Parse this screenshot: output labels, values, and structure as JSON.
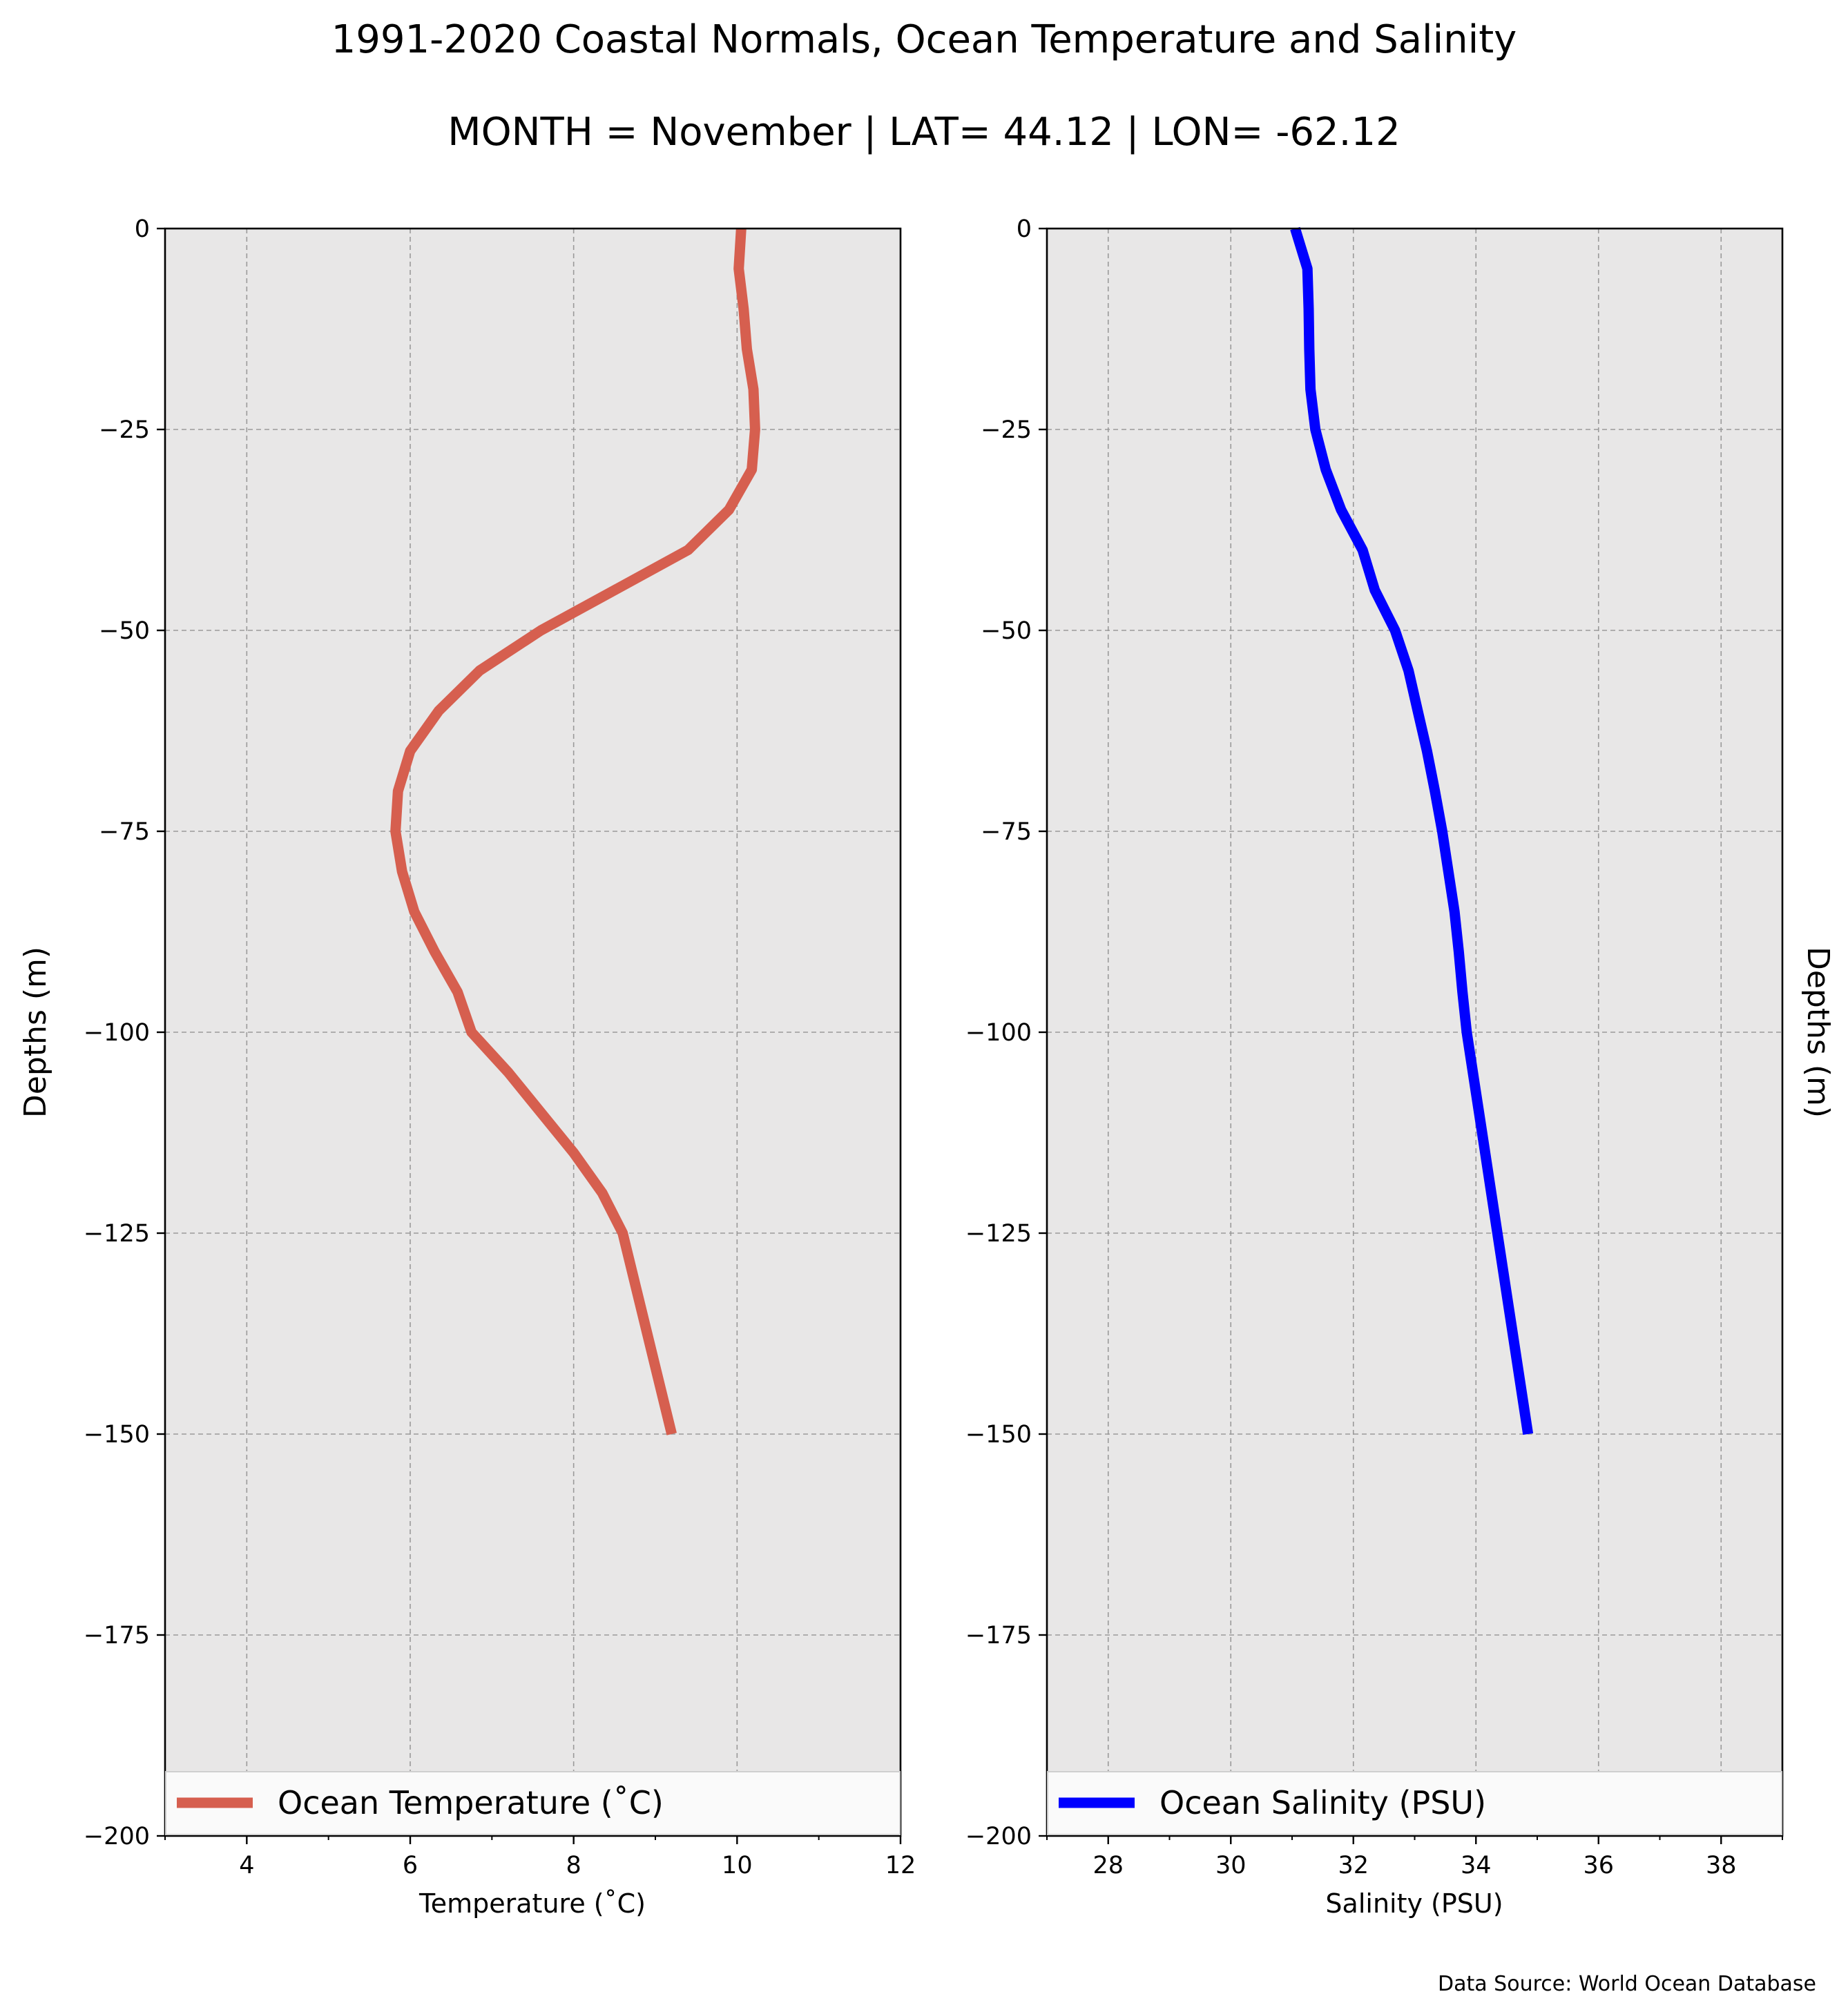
{
  "figure": {
    "title": "1991-2020 Coastal Normals, Ocean Temperature and Salinity",
    "subtitle": "MONTH = November | LAT= 44.12 | LON= -62.12",
    "source_note": "Data Source: World Ocean Database",
    "background_color": "#e8e7e7"
  },
  "chart_data": [
    {
      "type": "line",
      "panel": "temperature",
      "xlabel": "Temperature ($^\\circ$C)",
      "xlabel_text": "Temperature (˚C)",
      "ylabel": "Depths (m)",
      "xlim": [
        3,
        12
      ],
      "ylim": [
        -200,
        0
      ],
      "xticks": [
        "4",
        "6",
        "8",
        "10",
        "12"
      ],
      "xtick_values": [
        4,
        6,
        8,
        10,
        12
      ],
      "yticks": [
        "0",
        "−25",
        "−50",
        "−75",
        "−100",
        "−125",
        "−150",
        "−175",
        "−200"
      ],
      "ytick_values": [
        0,
        -25,
        -50,
        -75,
        -100,
        -125,
        -150,
        -175,
        -200
      ],
      "grid": true,
      "legend_position": "bottom",
      "series": [
        {
          "name": "Ocean Temperature (˚C)",
          "color": "#d65f4f",
          "x": [
            10.05,
            10.02,
            10.08,
            10.12,
            10.2,
            10.22,
            10.18,
            9.9,
            9.4,
            8.5,
            7.6,
            6.85,
            6.35,
            6.0,
            5.85,
            5.82,
            5.9,
            6.05,
            6.3,
            6.58,
            6.75,
            7.2,
            7.6,
            8.0,
            8.35,
            8.6,
            9.2
          ],
          "y": [
            0,
            -5,
            -10,
            -15,
            -20,
            -25,
            -30,
            -35,
            -40,
            -45,
            -50,
            -55,
            -60,
            -65,
            -70,
            -75,
            -80,
            -85,
            -90,
            -95,
            -100,
            -105,
            -110,
            -115,
            -120,
            -125,
            -150
          ]
        }
      ]
    },
    {
      "type": "line",
      "panel": "salinity",
      "xlabel": "Salinity (PSU)",
      "ylabel": "Depths (m)",
      "xlim": [
        27,
        39
      ],
      "ylim": [
        -200,
        0
      ],
      "xticks": [
        "28",
        "30",
        "32",
        "34",
        "36",
        "38"
      ],
      "xtick_values": [
        28,
        30,
        32,
        34,
        36,
        38
      ],
      "yticks": [
        "0",
        "−25",
        "−50",
        "−75",
        "−100",
        "−125",
        "−150",
        "−175",
        "−200"
      ],
      "ytick_values": [
        0,
        -25,
        -50,
        -75,
        -100,
        -125,
        -150,
        -175,
        -200
      ],
      "grid": true,
      "legend_position": "bottom",
      "series": [
        {
          "name": "Ocean Salinity (PSU)",
          "color": "#0000ff",
          "x": [
            31.05,
            31.25,
            31.27,
            31.28,
            31.3,
            31.38,
            31.55,
            31.8,
            32.15,
            32.35,
            32.68,
            32.9,
            33.05,
            33.2,
            33.33,
            33.45,
            33.55,
            33.65,
            33.72,
            33.78,
            33.85,
            33.95,
            34.05,
            34.15,
            34.25,
            34.35,
            34.85
          ],
          "y": [
            0,
            -5,
            -10,
            -15,
            -20,
            -25,
            -30,
            -35,
            -40,
            -45,
            -50,
            -55,
            -60,
            -65,
            -70,
            -75,
            -80,
            -85,
            -90,
            -95,
            -100,
            -105,
            -110,
            -115,
            -120,
            -125,
            -150
          ]
        }
      ]
    }
  ]
}
